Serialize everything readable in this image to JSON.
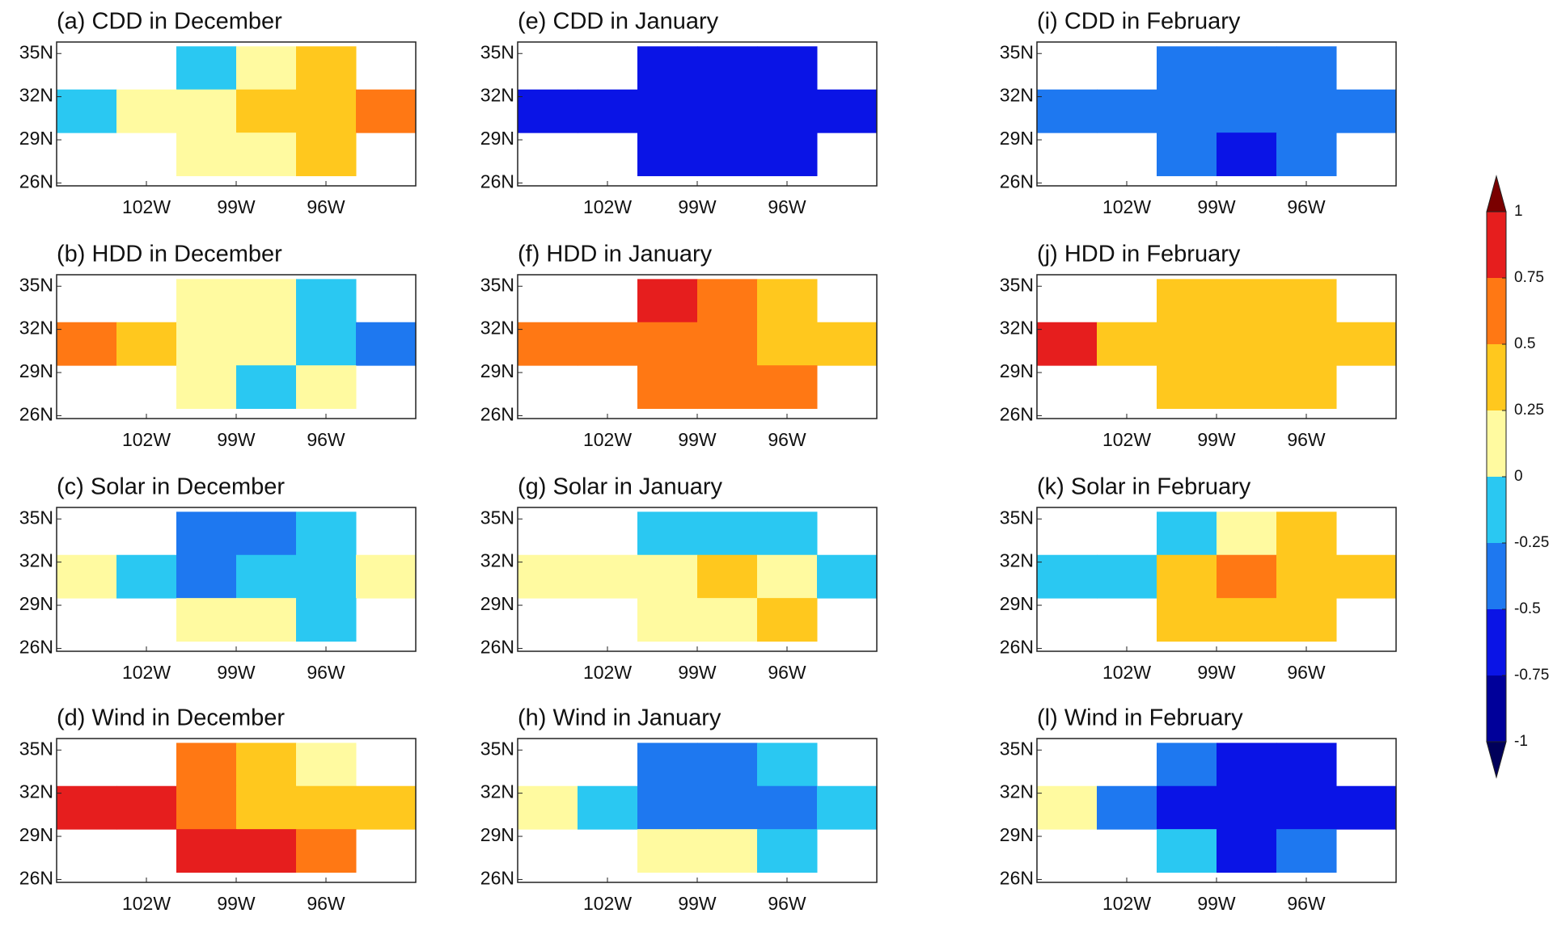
{
  "chart_data": [
    {
      "type": "heatmap",
      "title": "(a) CDD in December",
      "x": [
        -104,
        -102,
        -100,
        -98,
        -96,
        -94
      ],
      "y": [
        34,
        31,
        28
      ],
      "xlim": [
        -105,
        -93
      ],
      "ylim": [
        25.8,
        35.8
      ],
      "xticks": [
        {
          "value": -102,
          "label": "102W"
        },
        {
          "value": -99,
          "label": "99W"
        },
        {
          "value": -96,
          "label": "96W"
        }
      ],
      "yticks": [
        {
          "value": 26,
          "label": "26N"
        },
        {
          "value": 29,
          "label": "29N"
        },
        {
          "value": 32,
          "label": "32N"
        },
        {
          "value": 35,
          "label": "35N"
        }
      ],
      "values": [
        [
          null,
          null,
          -0.1,
          0.1,
          0.5,
          null
        ],
        [
          -0.1,
          0.1,
          0.2,
          0.3,
          0.5,
          0.7
        ],
        [
          null,
          null,
          0.1,
          0.1,
          0.3,
          null
        ]
      ]
    },
    {
      "type": "heatmap",
      "title": "(b) HDD in December",
      "x": [
        -104,
        -102,
        -100,
        -98,
        -96,
        -94
      ],
      "y": [
        34,
        31,
        28
      ],
      "xlim": [
        -105,
        -93
      ],
      "ylim": [
        25.8,
        35.8
      ],
      "xticks": [
        {
          "value": -102,
          "label": "102W"
        },
        {
          "value": -99,
          "label": "99W"
        },
        {
          "value": -96,
          "label": "96W"
        }
      ],
      "yticks": [
        {
          "value": 26,
          "label": "26N"
        },
        {
          "value": 29,
          "label": "29N"
        },
        {
          "value": 32,
          "label": "32N"
        },
        {
          "value": 35,
          "label": "35N"
        }
      ],
      "values": [
        [
          null,
          null,
          0.2,
          0.1,
          -0.1,
          null
        ],
        [
          0.6,
          0.3,
          0.1,
          0.05,
          -0.1,
          -0.3
        ],
        [
          null,
          null,
          0.1,
          -0.1,
          0.1,
          null
        ]
      ]
    },
    {
      "type": "heatmap",
      "title": "(c) Solar in December",
      "x": [
        -104,
        -102,
        -100,
        -98,
        -96,
        -94
      ],
      "y": [
        34,
        31,
        28
      ],
      "xlim": [
        -105,
        -93
      ],
      "ylim": [
        25.8,
        35.8
      ],
      "xticks": [
        {
          "value": -102,
          "label": "102W"
        },
        {
          "value": -99,
          "label": "99W"
        },
        {
          "value": -96,
          "label": "96W"
        }
      ],
      "yticks": [
        {
          "value": 26,
          "label": "26N"
        },
        {
          "value": 29,
          "label": "29N"
        },
        {
          "value": 32,
          "label": "32N"
        },
        {
          "value": 35,
          "label": "35N"
        }
      ],
      "values": [
        [
          null,
          null,
          -0.4,
          -0.3,
          -0.1,
          null
        ],
        [
          0.1,
          -0.2,
          -0.3,
          -0.2,
          -0.1,
          0.1
        ],
        [
          null,
          null,
          0.1,
          0.2,
          -0.1,
          null
        ]
      ]
    },
    {
      "type": "heatmap",
      "title": "(d) Wind in December",
      "x": [
        -104,
        -102,
        -100,
        -98,
        -96,
        -94
      ],
      "y": [
        34,
        31,
        28
      ],
      "xlim": [
        -105,
        -93
      ],
      "ylim": [
        25.8,
        35.8
      ],
      "xticks": [
        {
          "value": -102,
          "label": "102W"
        },
        {
          "value": -99,
          "label": "99W"
        },
        {
          "value": -96,
          "label": "96W"
        }
      ],
      "yticks": [
        {
          "value": 26,
          "label": "26N"
        },
        {
          "value": 29,
          "label": "29N"
        },
        {
          "value": 32,
          "label": "32N"
        },
        {
          "value": 35,
          "label": "35N"
        }
      ],
      "values": [
        [
          null,
          null,
          0.6,
          0.3,
          0.2,
          null
        ],
        [
          0.9,
          0.8,
          0.6,
          0.4,
          0.3,
          0.5
        ],
        [
          null,
          null,
          0.8,
          0.8,
          0.6,
          null
        ]
      ]
    },
    {
      "type": "heatmap",
      "title": "(e) CDD in January",
      "x": [
        -104,
        -102,
        -100,
        -98,
        -96,
        -94
      ],
      "y": [
        34,
        31,
        28
      ],
      "xlim": [
        -105,
        -93
      ],
      "ylim": [
        25.8,
        35.8
      ],
      "xticks": [
        {
          "value": -102,
          "label": "102W"
        },
        {
          "value": -99,
          "label": "99W"
        },
        {
          "value": -96,
          "label": "96W"
        }
      ],
      "yticks": [
        {
          "value": 26,
          "label": "26N"
        },
        {
          "value": 29,
          "label": "29N"
        },
        {
          "value": 32,
          "label": "32N"
        },
        {
          "value": 35,
          "label": "35N"
        }
      ],
      "values": [
        [
          null,
          null,
          -0.6,
          -0.6,
          -0.6,
          null
        ],
        [
          -0.7,
          -0.7,
          -0.65,
          -0.6,
          -0.6,
          -0.6
        ],
        [
          null,
          null,
          -0.5,
          -0.5,
          -0.5,
          null
        ]
      ]
    },
    {
      "type": "heatmap",
      "title": "(f) HDD in January",
      "x": [
        -104,
        -102,
        -100,
        -98,
        -96,
        -94
      ],
      "y": [
        34,
        31,
        28
      ],
      "xlim": [
        -105,
        -93
      ],
      "ylim": [
        25.8,
        35.8
      ],
      "xticks": [
        {
          "value": -102,
          "label": "102W"
        },
        {
          "value": -99,
          "label": "99W"
        },
        {
          "value": -96,
          "label": "96W"
        }
      ],
      "yticks": [
        {
          "value": 26,
          "label": "26N"
        },
        {
          "value": 29,
          "label": "29N"
        },
        {
          "value": 32,
          "label": "32N"
        },
        {
          "value": 35,
          "label": "35N"
        }
      ],
      "values": [
        [
          null,
          null,
          0.8,
          0.7,
          0.5,
          null
        ],
        [
          0.7,
          0.7,
          0.7,
          0.6,
          0.5,
          0.5
        ],
        [
          null,
          null,
          0.6,
          0.7,
          0.6,
          null
        ]
      ]
    },
    {
      "type": "heatmap",
      "title": "(g) Solar in January",
      "x": [
        -104,
        -102,
        -100,
        -98,
        -96,
        -94
      ],
      "y": [
        34,
        31,
        28
      ],
      "xlim": [
        -105,
        -93
      ],
      "ylim": [
        25.8,
        35.8
      ],
      "xticks": [
        {
          "value": -102,
          "label": "102W"
        },
        {
          "value": -99,
          "label": "99W"
        },
        {
          "value": -96,
          "label": "96W"
        }
      ],
      "yticks": [
        {
          "value": 26,
          "label": "26N"
        },
        {
          "value": 29,
          "label": "29N"
        },
        {
          "value": 32,
          "label": "32N"
        },
        {
          "value": 35,
          "label": "35N"
        }
      ],
      "values": [
        [
          null,
          null,
          -0.1,
          -0.1,
          -0.1,
          null
        ],
        [
          0.1,
          0.1,
          0.2,
          0.3,
          0.2,
          -0.1
        ],
        [
          null,
          null,
          0.2,
          0.1,
          0.3,
          null
        ]
      ]
    },
    {
      "type": "heatmap",
      "title": "(h) Wind in January",
      "x": [
        -104,
        -102,
        -100,
        -98,
        -96,
        -94
      ],
      "y": [
        34,
        31,
        28
      ],
      "xlim": [
        -105,
        -93
      ],
      "ylim": [
        25.8,
        35.8
      ],
      "xticks": [
        {
          "value": -102,
          "label": "102W"
        },
        {
          "value": -99,
          "label": "99W"
        },
        {
          "value": -96,
          "label": "96W"
        }
      ],
      "yticks": [
        {
          "value": 26,
          "label": "26N"
        },
        {
          "value": 29,
          "label": "29N"
        },
        {
          "value": 32,
          "label": "32N"
        },
        {
          "value": 35,
          "label": "35N"
        }
      ],
      "values": [
        [
          null,
          null,
          -0.3,
          -0.3,
          -0.2,
          null
        ],
        [
          0.1,
          -0.1,
          -0.3,
          -0.4,
          -0.3,
          -0.2
        ],
        [
          null,
          null,
          0.1,
          0.1,
          -0.1,
          null
        ]
      ]
    },
    {
      "type": "heatmap",
      "title": "(i) CDD in February",
      "x": [
        -104,
        -102,
        -100,
        -98,
        -96,
        -94
      ],
      "y": [
        34,
        31,
        28
      ],
      "xlim": [
        -105,
        -93
      ],
      "ylim": [
        25.8,
        35.8
      ],
      "xticks": [
        {
          "value": -102,
          "label": "102W"
        },
        {
          "value": -99,
          "label": "99W"
        },
        {
          "value": -96,
          "label": "96W"
        }
      ],
      "yticks": [
        {
          "value": 26,
          "label": "26N"
        },
        {
          "value": 29,
          "label": "29N"
        },
        {
          "value": 32,
          "label": "32N"
        },
        {
          "value": 35,
          "label": "35N"
        }
      ],
      "values": [
        [
          null,
          null,
          -0.4,
          -0.4,
          -0.4,
          null
        ],
        [
          -0.3,
          -0.4,
          -0.4,
          -0.45,
          -0.4,
          -0.4
        ],
        [
          null,
          null,
          -0.4,
          -0.5,
          -0.4,
          null
        ]
      ]
    },
    {
      "type": "heatmap",
      "title": "(j) HDD in February",
      "x": [
        -104,
        -102,
        -100,
        -98,
        -96,
        -94
      ],
      "y": [
        34,
        31,
        28
      ],
      "xlim": [
        -105,
        -93
      ],
      "ylim": [
        25.8,
        35.8
      ],
      "xticks": [
        {
          "value": -102,
          "label": "102W"
        },
        {
          "value": -99,
          "label": "99W"
        },
        {
          "value": -96,
          "label": "96W"
        }
      ],
      "yticks": [
        {
          "value": 26,
          "label": "26N"
        },
        {
          "value": 29,
          "label": "29N"
        },
        {
          "value": 32,
          "label": "32N"
        },
        {
          "value": 35,
          "label": "35N"
        }
      ],
      "values": [
        [
          null,
          null,
          0.3,
          0.3,
          0.3,
          null
        ],
        [
          0.8,
          0.5,
          0.4,
          0.4,
          0.4,
          0.3
        ],
        [
          null,
          null,
          0.5,
          0.5,
          0.4,
          null
        ]
      ]
    },
    {
      "type": "heatmap",
      "title": "(k) Solar in February",
      "x": [
        -104,
        -102,
        -100,
        -98,
        -96,
        -94
      ],
      "y": [
        34,
        31,
        28
      ],
      "xlim": [
        -105,
        -93
      ],
      "ylim": [
        25.8,
        35.8
      ],
      "xticks": [
        {
          "value": -102,
          "label": "102W"
        },
        {
          "value": -99,
          "label": "99W"
        },
        {
          "value": -96,
          "label": "96W"
        }
      ],
      "yticks": [
        {
          "value": 26,
          "label": "26N"
        },
        {
          "value": 29,
          "label": "29N"
        },
        {
          "value": 32,
          "label": "32N"
        },
        {
          "value": 35,
          "label": "35N"
        }
      ],
      "values": [
        [
          null,
          null,
          -0.1,
          0.2,
          0.3,
          null
        ],
        [
          -0.2,
          -0.1,
          0.4,
          0.6,
          0.5,
          0.4
        ],
        [
          null,
          null,
          0.3,
          0.5,
          0.3,
          null
        ]
      ]
    },
    {
      "type": "heatmap",
      "title": "(l) Wind in February",
      "x": [
        -104,
        -102,
        -100,
        -98,
        -96,
        -94
      ],
      "y": [
        34,
        31,
        28
      ],
      "xlim": [
        -105,
        -93
      ],
      "ylim": [
        25.8,
        35.8
      ],
      "xticks": [
        {
          "value": -102,
          "label": "102W"
        },
        {
          "value": -99,
          "label": "99W"
        },
        {
          "value": -96,
          "label": "96W"
        }
      ],
      "yticks": [
        {
          "value": 26,
          "label": "26N"
        },
        {
          "value": 29,
          "label": "29N"
        },
        {
          "value": 32,
          "label": "32N"
        },
        {
          "value": 35,
          "label": "35N"
        }
      ],
      "values": [
        [
          null,
          null,
          -0.4,
          -0.6,
          -0.6,
          null
        ],
        [
          0.1,
          -0.3,
          -0.6,
          -0.6,
          -0.6,
          -0.6
        ],
        [
          null,
          null,
          -0.1,
          -0.5,
          -0.3,
          null
        ]
      ]
    }
  ],
  "colorbar": {
    "lim": [
      -1,
      1
    ],
    "ticks": [
      -1,
      -0.75,
      -0.5,
      -0.25,
      0,
      0.25,
      0.5,
      0.75,
      1
    ],
    "colors": [
      "#00009a",
      "#0a14e6",
      "#1e78f0",
      "#2ac8f2",
      "#fffaa0",
      "#ffc81e",
      "#ff7814",
      "#e61e1e"
    ],
    "under": "#00005a",
    "over": "#7a0000"
  }
}
